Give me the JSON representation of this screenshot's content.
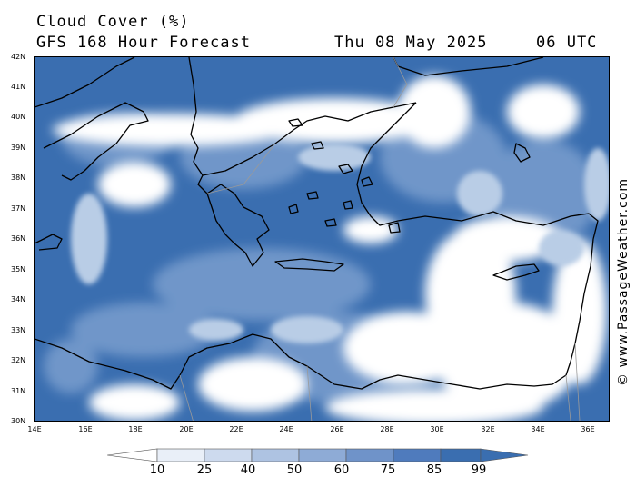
{
  "header": {
    "title": "Cloud Cover (%)",
    "subtitle": "GFS 168 Hour Forecast",
    "date": "Thu 08 May 2025",
    "time": "06 UTC"
  },
  "map": {
    "lat_labels": [
      "42N",
      "41N",
      "40N",
      "39N",
      "38N",
      "37N",
      "36N",
      "35N",
      "34N",
      "33N",
      "32N",
      "31N",
      "30N"
    ],
    "lon_labels": [
      "14E",
      "16E",
      "18E",
      "20E",
      "22E",
      "24E",
      "26E",
      "28E",
      "30E",
      "32E",
      "34E",
      "36E"
    ],
    "colors": {
      "water_cloud_deep": "#3a6eb0",
      "cloud_mid": "#6f96c9",
      "cloud_light": "#b9cde6",
      "clear": "#ffffff",
      "coast": "#000000",
      "border": "#9a9a9a"
    }
  },
  "colorbar": {
    "labels": [
      "10",
      "25",
      "40",
      "50",
      "60",
      "75",
      "85",
      "99"
    ],
    "colors": [
      "#ffffff",
      "#e9eff8",
      "#cddaee",
      "#aec3e2",
      "#8eabd6",
      "#6f93c9",
      "#4f7bbd",
      "#3a6eb0"
    ]
  },
  "watermark": "© www.PassageWeather.com"
}
